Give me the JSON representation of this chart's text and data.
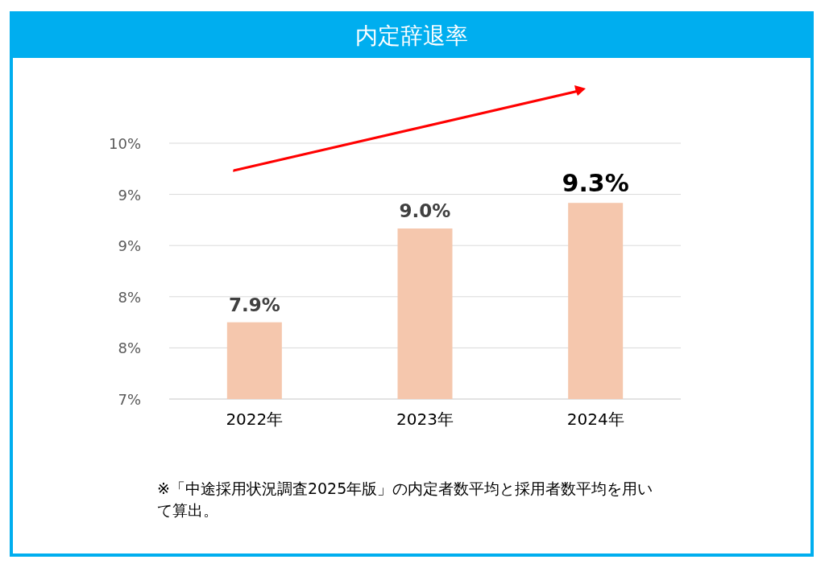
{
  "chart_data": {
    "type": "bar",
    "title": "内定辞退率",
    "categories": [
      "2022年",
      "2023年",
      "2024年"
    ],
    "values": [
      7.9,
      9.0,
      9.3
    ],
    "value_labels": [
      "7.9%",
      "9.0%",
      "9.3%"
    ],
    "color": "#f5c7ad",
    "ylim": [
      7,
      10
    ],
    "yticks": [
      {
        "value": 7,
        "label": "7%"
      },
      {
        "value": 7.6,
        "label": "8%"
      },
      {
        "value": 8.2,
        "label": "8%"
      },
      {
        "value": 8.8,
        "label": "9%"
      },
      {
        "value": 9.4,
        "label": "9%"
      },
      {
        "value": 10,
        "label": "10%"
      }
    ],
    "grid": "y",
    "annotations": [
      "※「中途採用状況調査2025年版」の内定者数平均と採用者数平均を用いて算出。"
    ]
  }
}
